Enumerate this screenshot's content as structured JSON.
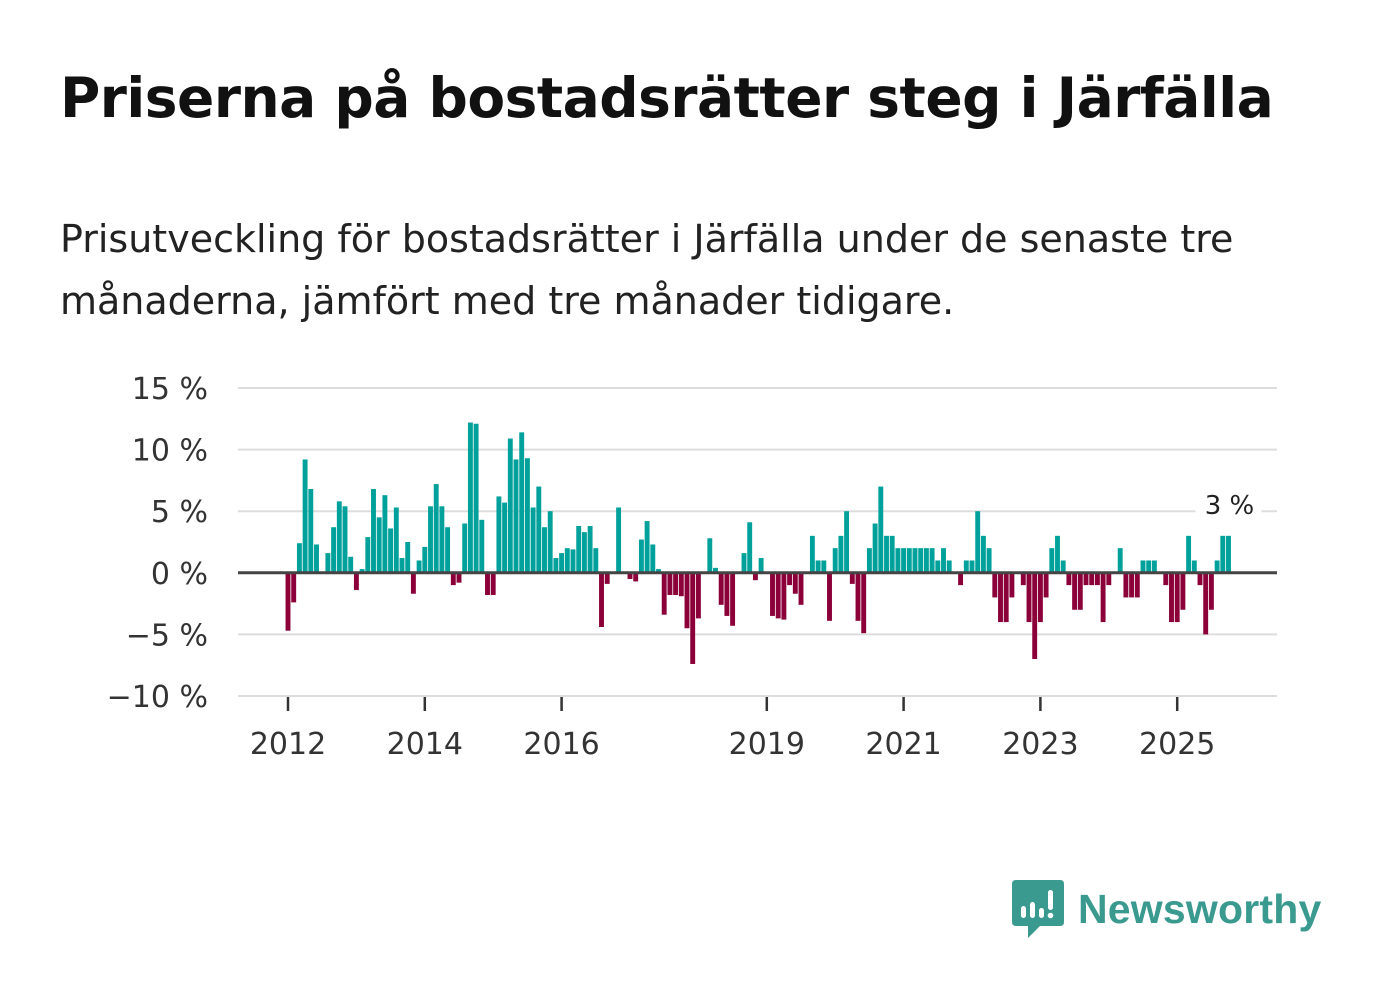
{
  "title": "Priserna på bostadsrätter steg i Järfälla",
  "subtitle": "Prisutveckling för bostadsrätter i Järfälla under de senaste tre månaderna, jämfört med tre månader tidigare.",
  "brand": {
    "name": "Newsworthy",
    "color": "#3a9a90",
    "icon": "newsworthy-logo-icon"
  },
  "colors": {
    "positive": "#00a19a",
    "negative": "#8b0038",
    "zero_line": "#444444",
    "grid": "#dddddd"
  },
  "chart_data": {
    "type": "bar",
    "title": "Priserna på bostadsrätter steg i Järfälla",
    "xlabel": "",
    "ylabel": "",
    "unit": "%",
    "ylim": [
      -10,
      15
    ],
    "yticks": [
      15,
      10,
      5,
      0,
      -5,
      -10
    ],
    "ytick_labels": [
      "15 %",
      "10 %",
      "5 %",
      "0 %",
      "−5 %",
      "−10 %"
    ],
    "xticks": [
      {
        "label": "2012",
        "index": 0
      },
      {
        "label": "2014",
        "index": 24
      },
      {
        "label": "2016",
        "index": 48
      },
      {
        "label": "2019",
        "index": 84
      },
      {
        "label": "2021",
        "index": 108
      },
      {
        "label": "2023",
        "index": 132
      },
      {
        "label": "2025",
        "index": 156
      }
    ],
    "grid": true,
    "start_month": "2012-01",
    "end_month": "2025-10",
    "frequency": "monthly",
    "annotation": {
      "label": "3 %",
      "index": 165
    },
    "values": [
      -4.7,
      -2.4,
      2.4,
      9.2,
      6.8,
      2.3,
      0,
      1.6,
      3.7,
      5.8,
      5.4,
      1.3,
      -1.4,
      0.3,
      2.9,
      6.8,
      4.5,
      6.3,
      3.6,
      5.3,
      1.2,
      2.5,
      -1.7,
      1.0,
      2.1,
      5.4,
      7.2,
      5.4,
      3.7,
      -1.0,
      -0.8,
      4.0,
      12.2,
      12.1,
      4.3,
      -1.8,
      -1.8,
      6.2,
      5.7,
      10.9,
      9.2,
      11.4,
      9.3,
      5.3,
      7.0,
      3.7,
      5.0,
      1.2,
      1.6,
      2.0,
      1.9,
      3.8,
      3.3,
      3.8,
      2.0,
      -4.4,
      -0.9,
      0,
      5.3,
      0,
      -0.5,
      -0.7,
      2.7,
      4.2,
      2.3,
      0.3,
      -3.4,
      -1.8,
      -1.8,
      -1.9,
      -4.5,
      -7.4,
      -3.7,
      0,
      2.8,
      0.4,
      -2.6,
      -3.5,
      -4.3,
      0,
      1.6,
      4.1,
      -0.6,
      1.2,
      0,
      -3.5,
      -3.7,
      -3.8,
      -1.0,
      -1.7,
      -2.6,
      0,
      3.0,
      1.0,
      1.0,
      -3.9,
      2.0,
      3.0,
      5.0,
      -0.9,
      -3.9,
      -4.9,
      2.0,
      4.0,
      7.0,
      3.0,
      3.0,
      2.0,
      2.0,
      2.0,
      2.0,
      2.0,
      2.0,
      2.0,
      1.0,
      2.0,
      1.0,
      0,
      -1.0,
      1.0,
      1.0,
      5.0,
      3.0,
      2.0,
      -2.0,
      -4.0,
      -4.0,
      -2.0,
      0,
      -1.0,
      -4.0,
      -7.0,
      -4.0,
      -2.0,
      2.0,
      3.0,
      1.0,
      -1.0,
      -3.0,
      -3.0,
      -1.0,
      -1.0,
      -1.0,
      -4.0,
      -1.0,
      0,
      2.0,
      -2.0,
      -2.0,
      -2.0,
      1.0,
      1.0,
      1.0,
      0,
      -1.0,
      -4.0,
      -4.0,
      -3.0,
      3.0,
      1.0,
      -1.0,
      -5.0,
      -3.0,
      1.0,
      3.0,
      3.0
    ]
  }
}
